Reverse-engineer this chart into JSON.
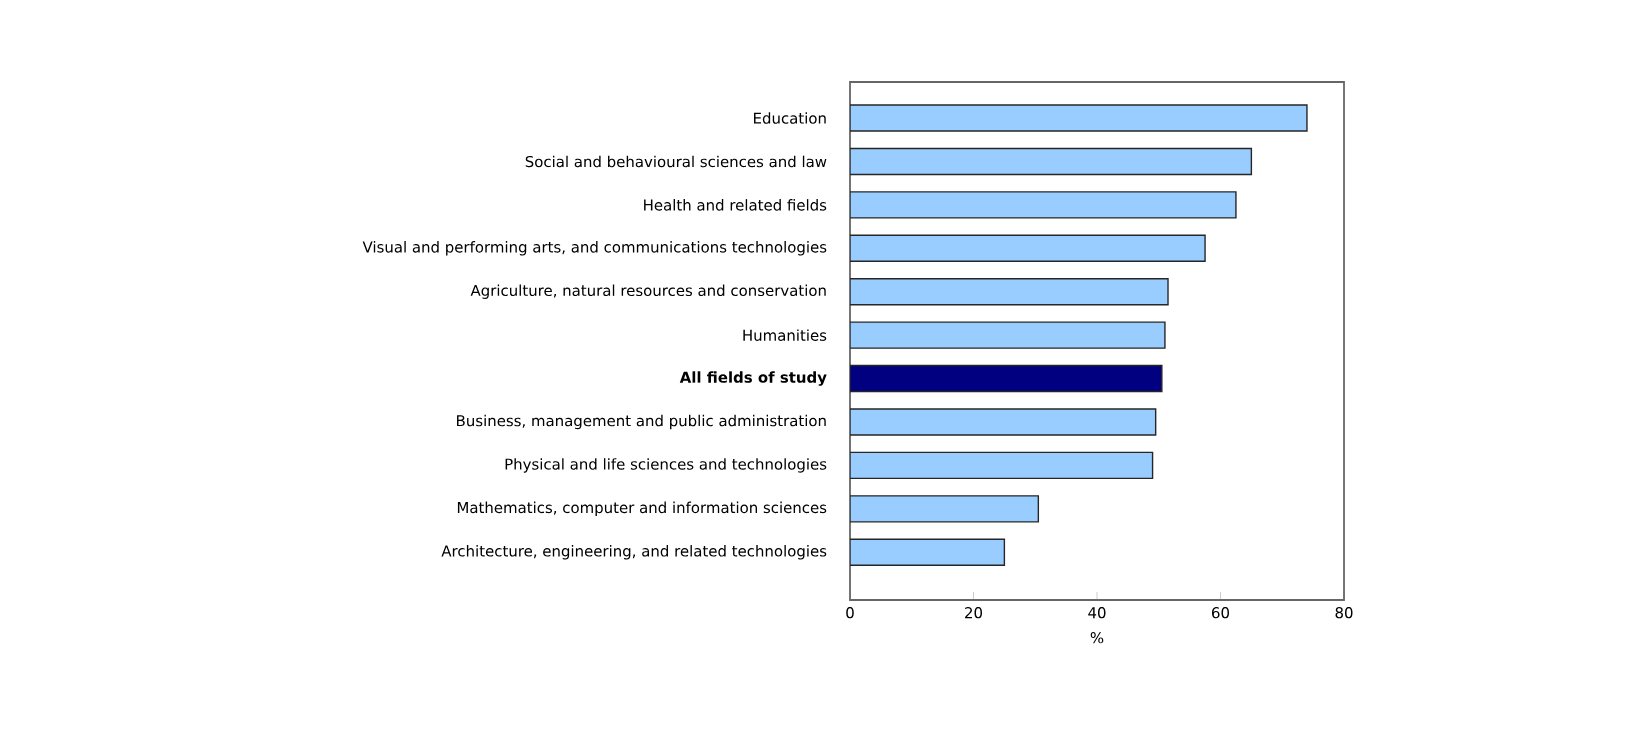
{
  "chart_data": {
    "type": "bar",
    "orientation": "horizontal",
    "xlabel": "%",
    "categories": [
      "Education",
      "Social and behavioural sciences and law",
      "Health and related fields",
      "Visual and performing arts, and communications technologies",
      "Agriculture, natural resources and conservation",
      "Humanities",
      "**All fields of study**",
      "Business, management and public administration",
      "Physical and life sciences and technologies",
      "Mathematics, computer and information sciences",
      "Architecture, engineering, and related technologies"
    ],
    "values": [
      74,
      65,
      62.5,
      57.5,
      51.5,
      51,
      50.5,
      49.5,
      49,
      30.5,
      25
    ],
    "colors": [
      "#99ccff",
      "#99ccff",
      "#99ccff",
      "#99ccff",
      "#99ccff",
      "#99ccff",
      "#000080",
      "#99ccff",
      "#99ccff",
      "#99ccff",
      "#99ccff"
    ],
    "xlim": [
      0,
      80
    ],
    "xticks": [
      0,
      20,
      40,
      60,
      80
    ],
    "grid": false
  }
}
